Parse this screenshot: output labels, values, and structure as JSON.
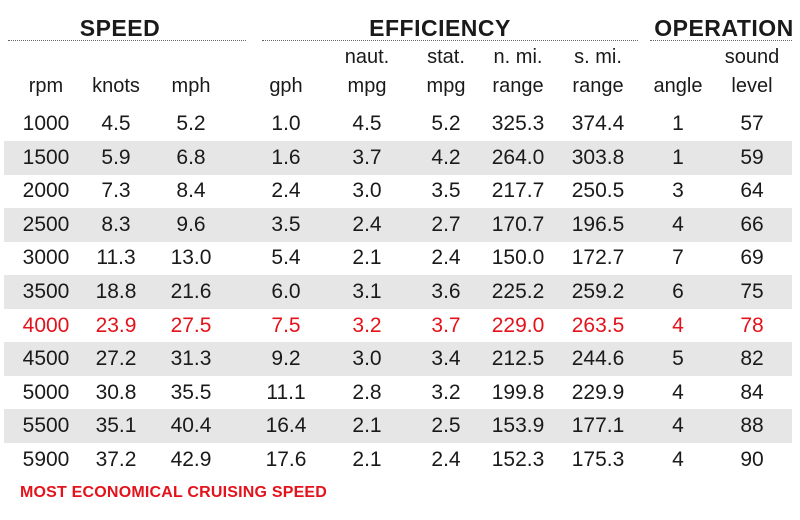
{
  "groups": {
    "speed": "SPEED",
    "efficiency": "EFFICIENCY",
    "operation": "OPERATION"
  },
  "headers": [
    {
      "line1": "",
      "line2": "rpm"
    },
    {
      "line1": "",
      "line2": "knots"
    },
    {
      "line1": "",
      "line2": "mph"
    },
    {
      "line1": "",
      "line2": "gph"
    },
    {
      "line1": "naut.",
      "line2": "mpg"
    },
    {
      "line1": "stat.",
      "line2": "mpg"
    },
    {
      "line1": "n. mi.",
      "line2": "range"
    },
    {
      "line1": "s. mi.",
      "line2": "range"
    },
    {
      "line1": "",
      "line2": "angle"
    },
    {
      "line1": "sound",
      "line2": "level"
    }
  ],
  "rows": [
    [
      "1000",
      "4.5",
      "5.2",
      "1.0",
      "4.5",
      "5.2",
      "325.3",
      "374.4",
      "1",
      "57"
    ],
    [
      "1500",
      "5.9",
      "6.8",
      "1.6",
      "3.7",
      "4.2",
      "264.0",
      "303.8",
      "1",
      "59"
    ],
    [
      "2000",
      "7.3",
      "8.4",
      "2.4",
      "3.0",
      "3.5",
      "217.7",
      "250.5",
      "3",
      "64"
    ],
    [
      "2500",
      "8.3",
      "9.6",
      "3.5",
      "2.4",
      "2.7",
      "170.7",
      "196.5",
      "4",
      "66"
    ],
    [
      "3000",
      "11.3",
      "13.0",
      "5.4",
      "2.1",
      "2.4",
      "150.0",
      "172.7",
      "7",
      "69"
    ],
    [
      "3500",
      "18.8",
      "21.6",
      "6.0",
      "3.1",
      "3.6",
      "225.2",
      "259.2",
      "6",
      "75"
    ],
    [
      "4000",
      "23.9",
      "27.5",
      "7.5",
      "3.2",
      "3.7",
      "229.0",
      "263.5",
      "4",
      "78"
    ],
    [
      "4500",
      "27.2",
      "31.3",
      "9.2",
      "3.0",
      "3.4",
      "212.5",
      "244.6",
      "5",
      "82"
    ],
    [
      "5000",
      "30.8",
      "35.5",
      "11.1",
      "2.8",
      "3.2",
      "199.8",
      "229.9",
      "4",
      "84"
    ],
    [
      "5500",
      "35.1",
      "40.4",
      "16.4",
      "2.1",
      "2.5",
      "153.9",
      "177.1",
      "4",
      "88"
    ],
    [
      "5900",
      "37.2",
      "42.9",
      "17.6",
      "2.1",
      "2.4",
      "152.3",
      "175.3",
      "4",
      "90"
    ]
  ],
  "highlight_row_index": 6,
  "highlight_color": "#e3121b",
  "footnote": "MOST ECONOMICAL CRUISING SPEED"
}
